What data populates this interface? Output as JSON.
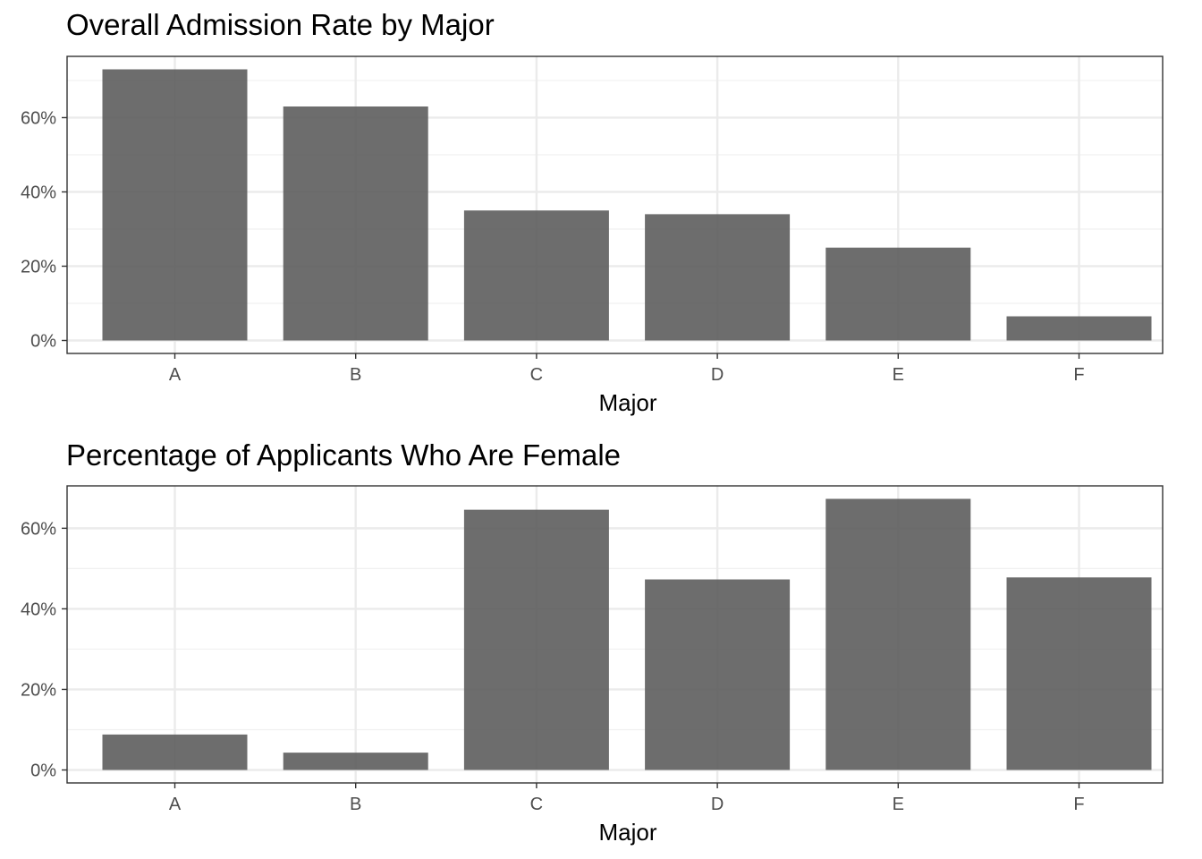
{
  "chart_data": [
    {
      "type": "bar",
      "title": "Overall Admission Rate by Major",
      "xlabel": "Major",
      "ylabel": "",
      "categories": [
        "A",
        "B",
        "C",
        "D",
        "E",
        "F"
      ],
      "values": [
        0.73,
        0.63,
        0.35,
        0.34,
        0.25,
        0.065
      ],
      "ylim": [
        0,
        0.73
      ],
      "yticks": [
        0,
        0.2,
        0.4,
        0.6
      ],
      "ytick_labels": [
        "0%",
        "20%",
        "40%",
        "60%"
      ],
      "grid": true,
      "bar_color": "#595959"
    },
    {
      "type": "bar",
      "title": "Percentage of Applicants Who Are Female",
      "xlabel": "Major",
      "ylabel": "",
      "categories": [
        "A",
        "B",
        "C",
        "D",
        "E",
        "F"
      ],
      "values": [
        0.088,
        0.043,
        0.646,
        0.473,
        0.673,
        0.478
      ],
      "ylim": [
        0,
        0.673
      ],
      "yticks": [
        0,
        0.2,
        0.4,
        0.6
      ],
      "ytick_labels": [
        "0%",
        "20%",
        "40%",
        "60%"
      ],
      "grid": true,
      "bar_color": "#595959"
    }
  ]
}
